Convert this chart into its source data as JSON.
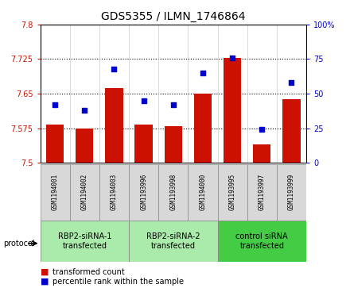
{
  "title": "GDS5355 / ILMN_1746864",
  "samples": [
    "GSM1194001",
    "GSM1194002",
    "GSM1194003",
    "GSM1193996",
    "GSM1193998",
    "GSM1194000",
    "GSM1193995",
    "GSM1193997",
    "GSM1193999"
  ],
  "bar_values": [
    7.583,
    7.575,
    7.662,
    7.583,
    7.58,
    7.65,
    7.728,
    7.54,
    7.638
  ],
  "dot_values": [
    42,
    38,
    68,
    45,
    42,
    65,
    76,
    24,
    58
  ],
  "y_min": 7.5,
  "y_max": 7.8,
  "y_ticks": [
    7.5,
    7.575,
    7.65,
    7.725,
    7.8
  ],
  "y2_ticks": [
    0,
    25,
    50,
    75,
    100
  ],
  "bar_color": "#CC1100",
  "dot_color": "#0000CC",
  "plot_bg": "#FFFFFF",
  "groups": [
    {
      "label": "RBP2-siRNA-1\ntransfected",
      "start": 0,
      "end": 3,
      "color": "#AAEAAA"
    },
    {
      "label": "RBP2-siRNA-2\ntransfected",
      "start": 3,
      "end": 6,
      "color": "#AAEAAA"
    },
    {
      "label": "control siRNA\ntransfected",
      "start": 6,
      "end": 9,
      "color": "#44CC44"
    }
  ],
  "protocol_label": "protocol",
  "legend_bar_label": "transformed count",
  "legend_dot_label": "percentile rank within the sample",
  "title_fontsize": 10,
  "tick_fontsize": 7,
  "sample_fontsize": 5.5,
  "group_fontsize": 7,
  "legend_fontsize": 7
}
